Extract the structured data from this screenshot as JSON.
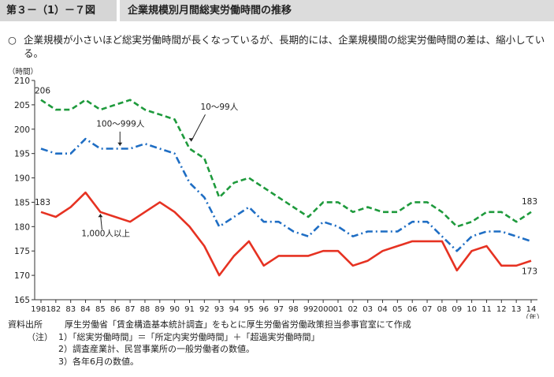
{
  "header": {
    "figure_number": "第３－（1）－７図",
    "title": "企業規模別月間総実労働時間の推移"
  },
  "summary": {
    "bullet": "○",
    "text": "企業規模が小さいほど総実労働時間が長くなっているが、長期的には、企業規模間の総実労働時間の差は、縮小している。"
  },
  "chart_data": {
    "type": "line",
    "ylabel": "（時間）",
    "xlabel": "（年）",
    "ylim": [
      165,
      210
    ],
    "yticks": [
      165,
      170,
      175,
      180,
      185,
      190,
      195,
      200,
      205,
      210
    ],
    "x_tick_labels": [
      "1981",
      "82",
      "83",
      "84",
      "85",
      "86",
      "87",
      "88",
      "89",
      "90",
      "91",
      "92",
      "93",
      "94",
      "95",
      "96",
      "97",
      "98",
      "99",
      "2000",
      "01",
      "02",
      "03",
      "04",
      "05",
      "06",
      "07",
      "08",
      "09",
      "10",
      "11",
      "12",
      "13",
      "14"
    ],
    "series": [
      {
        "name": "10～99人",
        "color": "#1e9a3c",
        "dash": "dashed",
        "values": [
          206,
          204,
          204,
          206,
          204,
          205,
          206,
          204,
          203,
          202,
          196,
          194,
          186,
          189,
          190,
          188,
          186,
          184,
          182,
          185,
          185,
          183,
          184,
          183,
          183,
          185,
          185,
          183,
          180,
          181,
          183,
          183,
          181,
          183
        ]
      },
      {
        "name": "100～999人",
        "color": "#1f6ec4",
        "dash": "dashdot",
        "values": [
          196,
          195,
          195,
          198,
          196,
          196,
          196,
          197,
          196,
          195,
          189,
          186,
          180,
          182,
          184,
          181,
          181,
          179,
          178,
          181,
          180,
          178,
          179,
          179,
          179,
          181,
          181,
          178,
          175,
          178,
          179,
          179,
          178,
          177
        ]
      },
      {
        "name": "1,000人以上",
        "color": "#e63222",
        "dash": "solid",
        "values": [
          183,
          182,
          184,
          187,
          183,
          182,
          181,
          183,
          185,
          183,
          180,
          176,
          170,
          174,
          177,
          172,
          174,
          174,
          174,
          175,
          175,
          172,
          173,
          175,
          176,
          177,
          177,
          177,
          171,
          175,
          176,
          172,
          172,
          173
        ]
      }
    ],
    "annotations": [
      {
        "text": "206",
        "series": 0,
        "index": 0
      },
      {
        "text": "183",
        "series": 2,
        "index": 0
      },
      {
        "text": "183",
        "series": 0,
        "index": 33
      },
      {
        "text": "173",
        "series": 2,
        "index": 33
      }
    ]
  },
  "notes": {
    "source_label": "資料出所",
    "source_text": "厚生労働省「賃金構造基本統計調査」をもとに厚生労働省労働政策担当参事官室にて作成",
    "notes_label": "（注）",
    "items": [
      "1）「総実労働時間」＝「所定内実労働時間」＋「超過実労働時間」",
      "2）調査産業計、民営事業所の一般労働者の数値。",
      "3）各年6月の数値。"
    ]
  }
}
